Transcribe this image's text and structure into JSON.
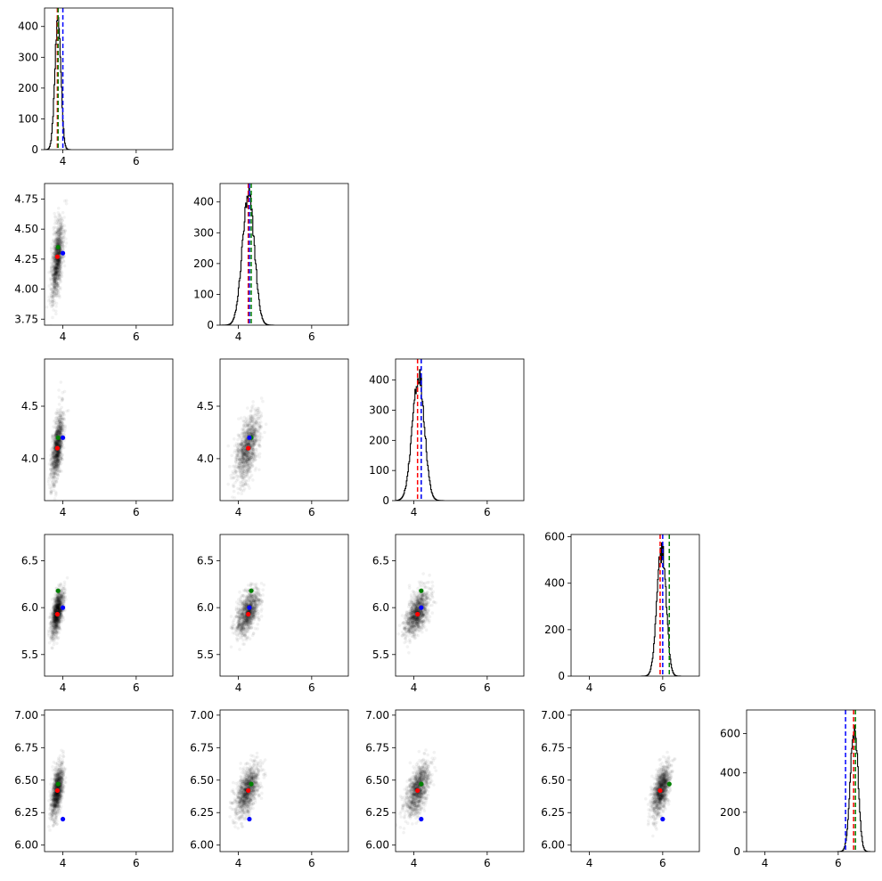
{
  "chart_data": {
    "type": "corner",
    "x_range": [
      3.5,
      7.0
    ],
    "x_ticks": [
      "4",
      "6"
    ],
    "colors": {
      "hist": "#000000",
      "marker_red": "#ff0000",
      "marker_green": "#008000",
      "marker_blue": "#0000ff",
      "density": "#000000"
    },
    "parameters": [
      {
        "mean": 3.85,
        "sd": 0.08,
        "hist_ylim": [
          0,
          460
        ],
        "hist_yticks": [
          "0",
          "100",
          "200",
          "300",
          "400"
        ],
        "scatter_ylim": [
          3.5,
          7.0
        ],
        "scatter_yticks": [],
        "markers": {
          "red": 3.85,
          "green": 3.87,
          "blue": 4.0
        }
      },
      {
        "mean": 4.25,
        "sd": 0.16,
        "hist_ylim": [
          0,
          460
        ],
        "hist_yticks": [
          "0",
          "100",
          "200",
          "300",
          "400"
        ],
        "scatter_ylim": [
          3.7,
          4.88
        ],
        "scatter_yticks": [
          "3.75",
          "4.00",
          "4.25",
          "4.50",
          "4.75"
        ],
        "markers": {
          "red": 4.27,
          "green": 4.35,
          "blue": 4.3
        }
      },
      {
        "mean": 4.1,
        "sd": 0.16,
        "hist_ylim": [
          0,
          470
        ],
        "hist_yticks": [
          "0",
          "100",
          "200",
          "300",
          "400"
        ],
        "scatter_ylim": [
          3.6,
          4.95
        ],
        "scatter_yticks": [
          "4.0",
          "4.5"
        ],
        "markers": {
          "red": 4.1,
          "green": 4.2,
          "blue": 4.2
        }
      },
      {
        "mean": 5.95,
        "sd": 0.12,
        "hist_ylim": [
          0,
          610
        ],
        "hist_yticks": [
          "0",
          "200",
          "400",
          "600"
        ],
        "scatter_ylim": [
          5.27,
          6.78
        ],
        "scatter_yticks": [
          "5.5",
          "6.0",
          "6.5"
        ],
        "markers": {
          "red": 5.93,
          "green": 6.18,
          "blue": 6.0
        }
      },
      {
        "mean": 6.42,
        "sd": 0.1,
        "hist_ylim": [
          0,
          720
        ],
        "hist_yticks": [
          "0",
          "200",
          "400",
          "600"
        ],
        "scatter_ylim": [
          5.95,
          7.04
        ],
        "scatter_yticks": [
          "6.00",
          "6.25",
          "6.50",
          "6.75",
          "7.00"
        ],
        "markers": {
          "red": 6.42,
          "green": 6.47,
          "blue": 6.2
        }
      }
    ]
  }
}
